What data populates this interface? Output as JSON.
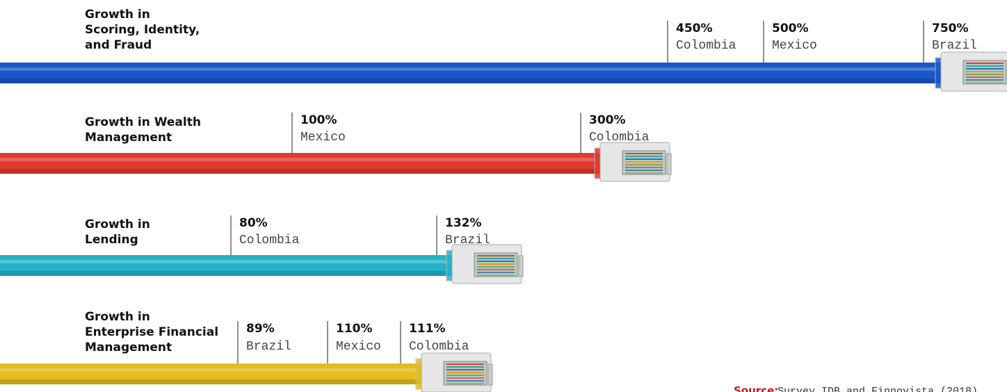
{
  "rows": [
    {
      "title": [
        "Growth in",
        "Scoring, Identity,",
        "and Fraud"
      ],
      "color": "#1b56c9",
      "markers": [
        {
          "value": "450%",
          "country": "Colombia"
        },
        {
          "value": "500%",
          "country": "Mexico"
        },
        {
          "value": "750%",
          "country": "Brazil"
        }
      ]
    },
    {
      "title": [
        "Growth in Wealth",
        "Management"
      ],
      "color": "#e2392f",
      "markers": [
        {
          "value": "100%",
          "country": "Mexico"
        },
        {
          "value": "300%",
          "country": "Colombia"
        }
      ]
    },
    {
      "title": [
        "Growth in",
        "Lending"
      ],
      "color": "#23b3c9",
      "markers": [
        {
          "value": "80%",
          "country": "Colombia"
        },
        {
          "value": "132%",
          "country": "Brazil"
        }
      ]
    },
    {
      "title": [
        "Growth in",
        "Enterprise Financial",
        "Management"
      ],
      "color": "#e5bb1f",
      "markers": [
        {
          "value": "89%",
          "country": "Brazil"
        },
        {
          "value": "110%",
          "country": "Mexico"
        },
        {
          "value": "111%",
          "country": "Colombia"
        }
      ]
    }
  ],
  "source": {
    "label": "Source:",
    "text": "Survey IDB and Finnovista (2018)"
  }
}
